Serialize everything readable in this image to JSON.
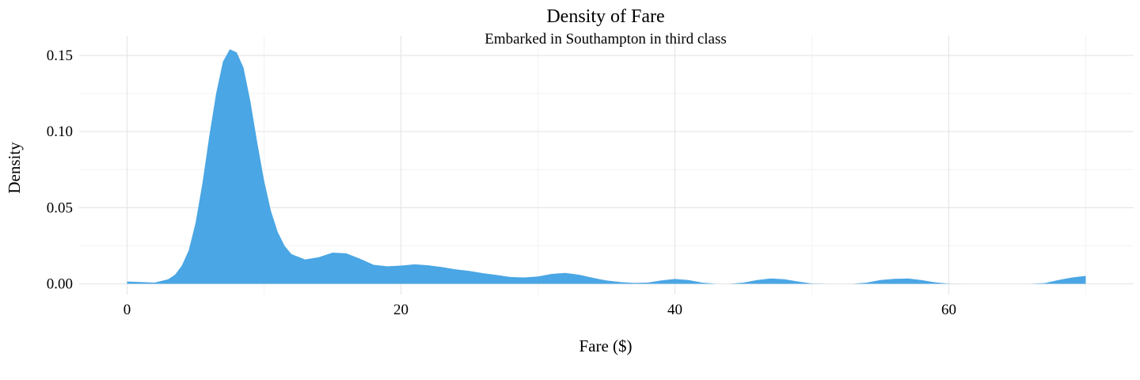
{
  "chart_data": {
    "type": "area",
    "title": "Density of Fare",
    "subtitle": "Embarked in Southampton in third class",
    "xlabel": "Fare ($)",
    "ylabel": "Density",
    "xlim": [
      -3.5,
      73.5
    ],
    "ylim": [
      -0.007,
      0.163
    ],
    "x_ticks": [
      0,
      20,
      40,
      60
    ],
    "x_tick_labels": [
      "0",
      "20",
      "40",
      "60"
    ],
    "y_ticks": [
      0,
      0.05,
      0.1,
      0.15
    ],
    "y_tick_labels": [
      "0.00",
      "0.05",
      "0.10",
      "0.15"
    ],
    "grid": true,
    "fill_color": "#4aa6e4",
    "x": [
      0,
      1,
      2,
      3,
      3.5,
      4,
      4.5,
      5,
      5.5,
      6,
      6.5,
      7,
      7.5,
      8,
      8.5,
      9,
      9.5,
      10,
      10.5,
      11,
      11.5,
      12,
      13,
      14,
      15,
      16,
      17,
      18,
      19,
      20,
      21,
      22,
      23,
      24,
      25,
      26,
      27,
      28,
      29,
      30,
      31,
      32,
      33,
      34,
      35,
      36,
      37,
      38,
      39,
      40,
      41,
      42,
      43,
      44,
      45,
      46,
      47,
      48,
      49,
      50,
      51,
      52,
      53,
      54,
      55,
      56,
      57,
      58,
      59,
      60,
      61,
      62,
      63,
      64,
      65,
      66,
      67,
      68,
      69,
      70
    ],
    "y": [
      0.0015,
      0.0012,
      0.0008,
      0.003,
      0.006,
      0.012,
      0.022,
      0.04,
      0.066,
      0.097,
      0.125,
      0.146,
      0.154,
      0.152,
      0.142,
      0.12,
      0.093,
      0.068,
      0.048,
      0.034,
      0.025,
      0.0195,
      0.016,
      0.0175,
      0.0205,
      0.02,
      0.0165,
      0.0125,
      0.0115,
      0.012,
      0.0128,
      0.0122,
      0.011,
      0.0095,
      0.0085,
      0.007,
      0.0058,
      0.0045,
      0.0042,
      0.0048,
      0.0065,
      0.0072,
      0.006,
      0.004,
      0.0022,
      0.0012,
      0.0006,
      0.0008,
      0.0022,
      0.0032,
      0.0025,
      0.0008,
      0.0,
      0.0,
      0.0008,
      0.0025,
      0.0035,
      0.003,
      0.0015,
      0.0002,
      0.0,
      0.0,
      0.0,
      0.0008,
      0.0025,
      0.0033,
      0.0035,
      0.0025,
      0.001,
      0.0001,
      0.0,
      0.0,
      0.0,
      0.0,
      0.0,
      0.0,
      0.0005,
      0.0025,
      0.0042,
      0.0052
    ]
  }
}
